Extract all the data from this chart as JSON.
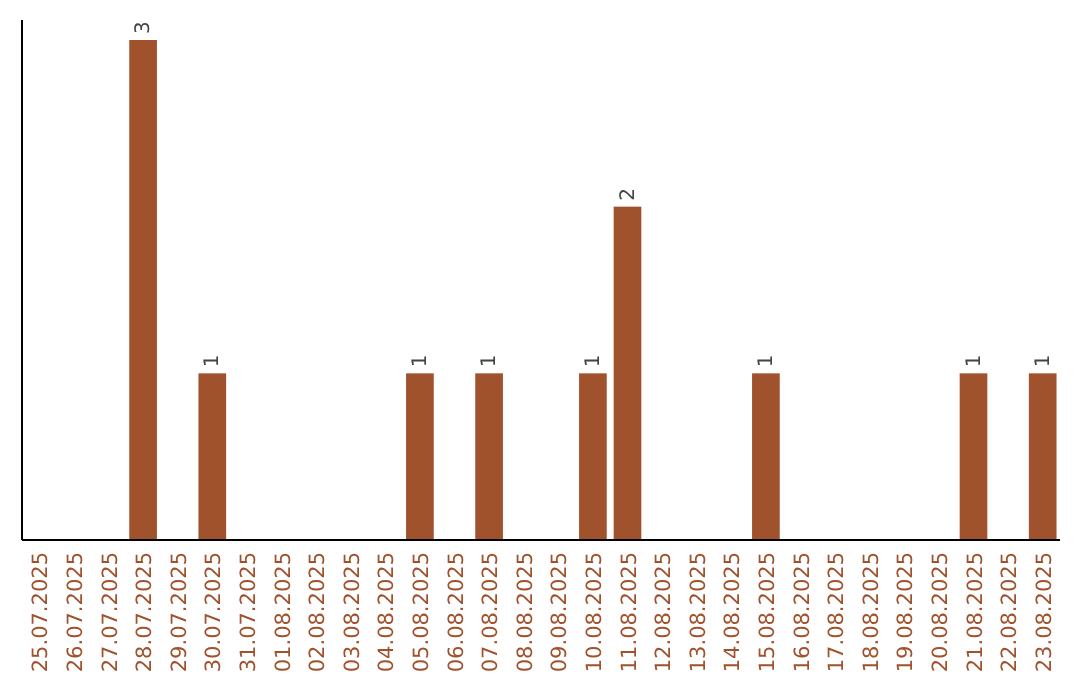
{
  "chart_data": {
    "type": "bar",
    "categories": [
      "25.07.2025",
      "26.07.2025",
      "27.07.2025",
      "28.07.2025",
      "29.07.2025",
      "30.07.2025",
      "31.07.2025",
      "01.08.2025",
      "02.08.2025",
      "03.08.2025",
      "04.08.2025",
      "05.08.2025",
      "06.08.2025",
      "07.08.2025",
      "08.08.2025",
      "09.08.2025",
      "10.08.2025",
      "11.08.2025",
      "12.08.2025",
      "13.08.2025",
      "14.08.2025",
      "15.08.2025",
      "16.08.2025",
      "17.08.2025",
      "18.08.2025",
      "19.08.2025",
      "20.08.2025",
      "21.08.2025",
      "22.08.2025",
      "23.08.2025"
    ],
    "values": [
      0,
      0,
      0,
      3,
      0,
      1,
      0,
      0,
      0,
      0,
      0,
      1,
      0,
      1,
      0,
      0,
      1,
      2,
      0,
      0,
      0,
      1,
      0,
      0,
      0,
      0,
      0,
      1,
      0,
      1
    ],
    "value_labels": [
      null,
      null,
      null,
      "3",
      null,
      "1",
      null,
      null,
      null,
      null,
      null,
      "1",
      null,
      "1",
      null,
      null,
      "1",
      "2",
      null,
      null,
      null,
      "1",
      null,
      null,
      null,
      null,
      null,
      "1",
      null,
      "1"
    ],
    "color": "#a0522d"
  }
}
